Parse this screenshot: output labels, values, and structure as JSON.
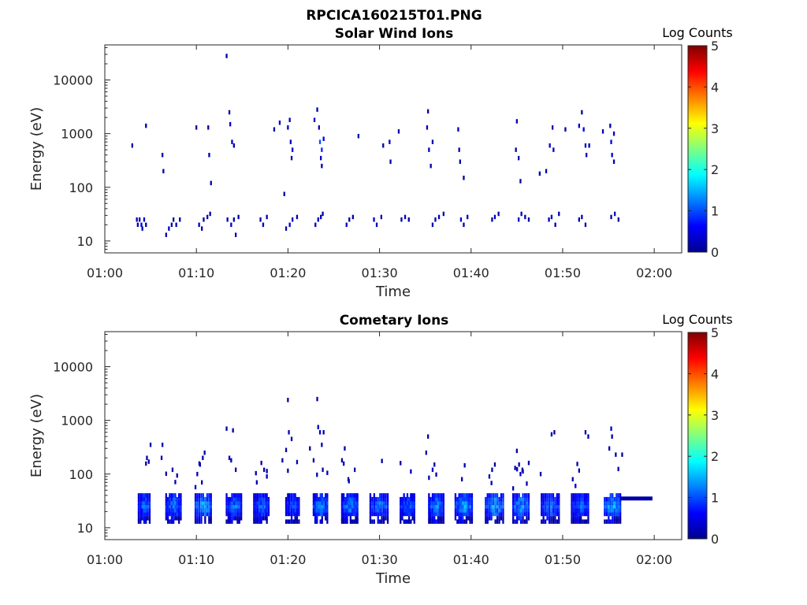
{
  "figure": {
    "title": "RPCICA160215T01.PNG"
  },
  "chart_data": [
    {
      "type": "heatmap",
      "title": "Solar Wind Ions",
      "xlabel": "Time",
      "ylabel": "Energy (eV)",
      "x_ticks": [
        "01:00",
        "01:10",
        "01:20",
        "01:30",
        "01:40",
        "01:50",
        "02:00"
      ],
      "x_range_minutes_after_0100": [
        0,
        63
      ],
      "y_scale": "log",
      "y_ticks": [
        "10",
        "100",
        "1000",
        "10000"
      ],
      "y_range_eV": [
        6,
        45000
      ],
      "colorbar": {
        "title": "Log Counts",
        "ticks": [
          "0",
          "1",
          "2",
          "3",
          "4",
          "5"
        ],
        "range": [
          0,
          5
        ],
        "colormap": "jet"
      },
      "grid": false,
      "cells": [
        [
          3.5,
          25,
          0.2
        ],
        [
          3.6,
          20,
          0.2
        ],
        [
          3.8,
          25,
          0.3
        ],
        [
          4.0,
          20,
          0.4
        ],
        [
          4.3,
          25,
          0.3
        ],
        [
          4.5,
          20,
          0.2
        ],
        [
          4.1,
          17,
          0.2
        ],
        [
          6.7,
          13,
          0.2
        ],
        [
          7.0,
          17,
          0.3
        ],
        [
          7.3,
          20,
          0.3
        ],
        [
          7.5,
          25,
          0.2
        ],
        [
          7.8,
          20,
          0.2
        ],
        [
          8.2,
          25,
          0.2
        ],
        [
          10.3,
          20,
          0.3
        ],
        [
          10.6,
          17,
          0.2
        ],
        [
          10.8,
          25,
          0.2
        ],
        [
          11.2,
          28,
          0.3
        ],
        [
          11.5,
          32,
          0.2
        ],
        [
          13.4,
          25,
          0.2
        ],
        [
          13.8,
          20,
          0.3
        ],
        [
          14.1,
          25,
          0.2
        ],
        [
          14.3,
          13,
          0.2
        ],
        [
          14.6,
          28,
          0.2
        ],
        [
          17.0,
          25,
          0.2
        ],
        [
          17.3,
          20,
          0.3
        ],
        [
          17.7,
          28,
          0.2
        ],
        [
          19.8,
          17,
          0.2
        ],
        [
          20.2,
          20,
          0.4
        ],
        [
          20.5,
          25,
          0.3
        ],
        [
          21.0,
          28,
          0.2
        ],
        [
          23.0,
          20,
          0.2
        ],
        [
          23.3,
          25,
          0.3
        ],
        [
          23.6,
          28,
          0.3
        ],
        [
          23.8,
          32,
          0.2
        ],
        [
          26.4,
          20,
          0.3
        ],
        [
          26.7,
          25,
          0.2
        ],
        [
          27.1,
          28,
          0.2
        ],
        [
          29.4,
          25,
          0.3
        ],
        [
          29.7,
          20,
          0.3
        ],
        [
          30.2,
          28,
          0.2
        ],
        [
          32.4,
          25,
          0.2
        ],
        [
          32.8,
          28,
          0.3
        ],
        [
          33.2,
          25,
          0.2
        ],
        [
          35.8,
          20,
          0.2
        ],
        [
          36.1,
          25,
          0.3
        ],
        [
          36.5,
          28,
          0.2
        ],
        [
          37.0,
          32,
          0.2
        ],
        [
          38.9,
          25,
          0.3
        ],
        [
          39.2,
          20,
          0.3
        ],
        [
          39.6,
          28,
          0.2
        ],
        [
          42.3,
          25,
          0.2
        ],
        [
          42.6,
          28,
          0.3
        ],
        [
          43.0,
          32,
          0.2
        ],
        [
          45.2,
          25,
          0.3
        ],
        [
          45.5,
          32,
          0.3
        ],
        [
          45.9,
          28,
          0.2
        ],
        [
          46.3,
          25,
          0.2
        ],
        [
          48.5,
          25,
          0.2
        ],
        [
          48.8,
          28,
          0.3
        ],
        [
          49.2,
          20,
          0.2
        ],
        [
          49.6,
          32,
          0.2
        ],
        [
          51.8,
          25,
          0.2
        ],
        [
          52.1,
          28,
          0.3
        ],
        [
          52.5,
          20,
          0.2
        ],
        [
          55.3,
          28,
          0.2
        ],
        [
          55.7,
          32,
          0.3
        ],
        [
          56.1,
          25,
          0.2
        ],
        [
          3.0,
          600,
          0.2
        ],
        [
          4.5,
          1400,
          0.2
        ],
        [
          6.3,
          400,
          0.2
        ],
        [
          6.4,
          200,
          0.2
        ],
        [
          10.0,
          1300,
          0.2
        ],
        [
          11.3,
          1300,
          0.2
        ],
        [
          11.4,
          400,
          0.2
        ],
        [
          11.6,
          120,
          0.2
        ],
        [
          13.3,
          28000,
          0.2
        ],
        [
          13.6,
          2500,
          0.2
        ],
        [
          13.7,
          1500,
          0.4
        ],
        [
          13.9,
          700,
          0.3
        ],
        [
          14.1,
          600,
          0.2
        ],
        [
          18.5,
          1200,
          0.2
        ],
        [
          19.1,
          1600,
          0.3
        ],
        [
          19.6,
          75,
          0.2
        ],
        [
          20.0,
          1300,
          0.4
        ],
        [
          20.2,
          1800,
          0.3
        ],
        [
          20.3,
          700,
          0.3
        ],
        [
          20.5,
          500,
          0.4
        ],
        [
          20.4,
          350,
          0.2
        ],
        [
          22.9,
          1800,
          0.3
        ],
        [
          23.2,
          2800,
          0.2
        ],
        [
          23.4,
          1300,
          0.4
        ],
        [
          23.5,
          700,
          1.0
        ],
        [
          23.7,
          500,
          0.8
        ],
        [
          23.9,
          800,
          0.5
        ],
        [
          23.6,
          350,
          0.3
        ],
        [
          23.7,
          250,
          0.2
        ],
        [
          27.7,
          900,
          0.2
        ],
        [
          30.4,
          600,
          0.2
        ],
        [
          31.1,
          700,
          0.3
        ],
        [
          31.2,
          300,
          0.2
        ],
        [
          32.1,
          1100,
          0.2
        ],
        [
          35.2,
          1300,
          0.3
        ],
        [
          35.3,
          2600,
          0.2
        ],
        [
          35.4,
          500,
          0.3
        ],
        [
          35.8,
          700,
          0.2
        ],
        [
          35.6,
          250,
          0.2
        ],
        [
          38.6,
          1200,
          0.3
        ],
        [
          38.7,
          500,
          0.3
        ],
        [
          38.8,
          300,
          0.2
        ],
        [
          39.2,
          150,
          0.2
        ],
        [
          45.0,
          1700,
          0.2
        ],
        [
          44.9,
          500,
          0.2
        ],
        [
          45.2,
          350,
          0.2
        ],
        [
          45.4,
          130,
          0.2
        ],
        [
          47.5,
          180,
          0.2
        ],
        [
          48.2,
          200,
          0.2
        ],
        [
          48.6,
          600,
          0.4
        ],
        [
          48.9,
          1300,
          0.3
        ],
        [
          49.0,
          500,
          0.3
        ],
        [
          50.3,
          1200,
          0.2
        ],
        [
          51.8,
          1400,
          0.3
        ],
        [
          52.1,
          2500,
          0.2
        ],
        [
          52.3,
          1200,
          0.4
        ],
        [
          52.5,
          600,
          0.4
        ],
        [
          52.6,
          400,
          0.3
        ],
        [
          52.9,
          600,
          0.2
        ],
        [
          54.4,
          1100,
          0.2
        ],
        [
          55.2,
          1400,
          0.2
        ],
        [
          55.3,
          700,
          0.5
        ],
        [
          55.4,
          400,
          0.4
        ],
        [
          55.6,
          1000,
          0.3
        ],
        [
          55.6,
          300,
          0.2
        ]
      ]
    },
    {
      "type": "heatmap",
      "title": "Cometary Ions",
      "xlabel": "Time",
      "ylabel": "Energy (eV)",
      "x_ticks": [
        "01:00",
        "01:10",
        "01:20",
        "01:30",
        "01:40",
        "01:50",
        "02:00"
      ],
      "x_range_minutes_after_0100": [
        0,
        63
      ],
      "y_scale": "log",
      "y_ticks": [
        "10",
        "100",
        "1000",
        "10000"
      ],
      "y_range_eV": [
        6,
        45000
      ],
      "colorbar": {
        "title": "Log Counts",
        "ticks": [
          "0",
          "1",
          "2",
          "3",
          "4",
          "5"
        ],
        "range": [
          0,
          5
        ],
        "colormap": "jet"
      },
      "grid": false,
      "cells": [],
      "bursts": [
        [
          3.7,
          4.9,
          1.5
        ],
        [
          6.7,
          8.3,
          1.6
        ],
        [
          9.9,
          11.6,
          1.9
        ],
        [
          13.3,
          14.9,
          1.5
        ],
        [
          16.3,
          17.9,
          1.4
        ],
        [
          19.8,
          21.2,
          1.3
        ],
        [
          22.8,
          24.3,
          1.7
        ],
        [
          25.9,
          27.6,
          1.6
        ],
        [
          29.0,
          30.9,
          1.5
        ],
        [
          32.3,
          33.8,
          1.4
        ],
        [
          35.4,
          37.0,
          1.6
        ],
        [
          38.3,
          40.1,
          1.8
        ],
        [
          41.6,
          43.5,
          1.9
        ],
        [
          44.6,
          46.3,
          1.8
        ],
        [
          47.7,
          49.6,
          1.5
        ],
        [
          51.0,
          52.8,
          1.4
        ],
        [
          54.6,
          56.3,
          1.9
        ]
      ],
      "band": {
        "x_start": 56.3,
        "x_end": 59.8,
        "energy_eV": 35,
        "value": 0.2
      },
      "sparse": [
        [
          5.0,
          350,
          0.2
        ],
        [
          4.8,
          170,
          0.2
        ],
        [
          4.6,
          200,
          0.2
        ],
        [
          6.3,
          350,
          0.2
        ],
        [
          6.2,
          200,
          0.3
        ],
        [
          7.4,
          120,
          0.2
        ],
        [
          10.1,
          100,
          0.3
        ],
        [
          10.4,
          150,
          0.3
        ],
        [
          10.7,
          200,
          0.2
        ],
        [
          10.9,
          250,
          0.2
        ],
        [
          10.6,
          70,
          0.2
        ],
        [
          13.3,
          700,
          0.2
        ],
        [
          13.6,
          200,
          0.3
        ],
        [
          14.0,
          650,
          0.2
        ],
        [
          14.3,
          120,
          0.2
        ],
        [
          13.8,
          180,
          0.2
        ],
        [
          16.6,
          70,
          0.2
        ],
        [
          17.4,
          120,
          0.2
        ],
        [
          17.7,
          90,
          0.2
        ],
        [
          19.4,
          180,
          0.2
        ],
        [
          20.0,
          2400,
          0.2
        ],
        [
          20.1,
          600,
          0.3
        ],
        [
          20.4,
          450,
          0.2
        ],
        [
          19.8,
          280,
          0.2
        ],
        [
          22.4,
          300,
          0.2
        ],
        [
          22.8,
          180,
          0.2
        ],
        [
          23.2,
          2500,
          0.2
        ],
        [
          23.3,
          750,
          0.3
        ],
        [
          23.5,
          600,
          0.4
        ],
        [
          23.7,
          350,
          0.3
        ],
        [
          23.8,
          120,
          0.2
        ],
        [
          23.9,
          600,
          0.2
        ],
        [
          25.9,
          180,
          0.2
        ],
        [
          26.2,
          300,
          0.2
        ],
        [
          26.6,
          80,
          0.2
        ],
        [
          27.3,
          120,
          0.2
        ],
        [
          35.3,
          500,
          0.2
        ],
        [
          35.1,
          250,
          0.2
        ],
        [
          35.8,
          120,
          0.3
        ],
        [
          36.0,
          150,
          0.2
        ],
        [
          39.0,
          80,
          0.2
        ],
        [
          42.0,
          90,
          0.2
        ],
        [
          42.3,
          120,
          0.3
        ],
        [
          42.6,
          150,
          0.2
        ],
        [
          45.0,
          270,
          0.2
        ],
        [
          45.4,
          100,
          0.3
        ],
        [
          45.6,
          120,
          0.2
        ],
        [
          47.6,
          100,
          0.2
        ],
        [
          48.8,
          550,
          0.3
        ],
        [
          49.1,
          600,
          0.2
        ],
        [
          51.1,
          80,
          0.3
        ],
        [
          51.4,
          60,
          0.3
        ],
        [
          52.5,
          600,
          0.2
        ],
        [
          52.8,
          500,
          0.2
        ],
        [
          55.3,
          700,
          0.3
        ],
        [
          55.4,
          500,
          0.2
        ],
        [
          55.1,
          300,
          0.2
        ],
        [
          55.8,
          230,
          0.2
        ],
        [
          56.5,
          230,
          0.2
        ]
      ]
    }
  ],
  "colors": {
    "background": "#ffffff",
    "axis": "#262626"
  }
}
